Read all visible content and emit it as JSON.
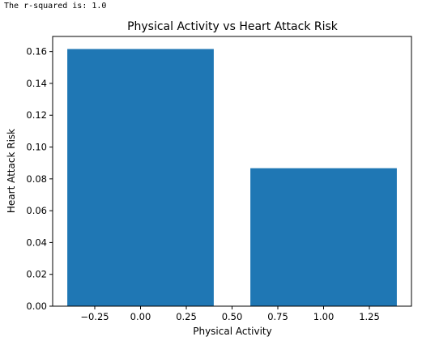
{
  "output": {
    "rsquared_text": "The r-squared is: 1.0"
  },
  "chart_data": {
    "type": "bar",
    "title": "Physical Activity vs Heart Attack Risk",
    "xlabel": "Physical Activity",
    "ylabel": "Heart Attack Risk",
    "categories": [
      0,
      1
    ],
    "bar_width": 0.8,
    "values": [
      0.1616,
      0.0867
    ],
    "bar_color": "#1f77b4",
    "xlim": [
      -0.48,
      1.48
    ],
    "ylim": [
      0,
      0.1695
    ],
    "xticks": [
      -0.25,
      0.0,
      0.25,
      0.5,
      0.75,
      1.0,
      1.25
    ],
    "xtick_labels": [
      "−0.25",
      "0.00",
      "0.25",
      "0.50",
      "0.75",
      "1.00",
      "1.25"
    ],
    "yticks": [
      0,
      0.02,
      0.04,
      0.06,
      0.08,
      0.1,
      0.12,
      0.14,
      0.16
    ],
    "ytick_labels": [
      "0.00",
      "0.02",
      "0.04",
      "0.06",
      "0.08",
      "0.10",
      "0.12",
      "0.14",
      "0.16"
    ],
    "grid": false,
    "legend": "none"
  }
}
